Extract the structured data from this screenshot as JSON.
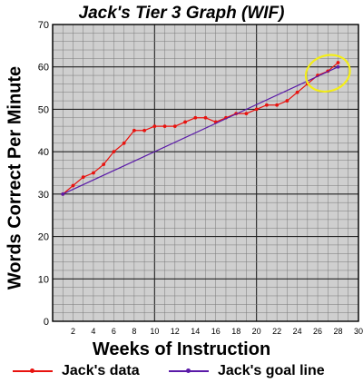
{
  "chart_data": {
    "type": "line",
    "title": "Jack's Tier 3 Graph (WIF)",
    "xlabel": "Weeks of Instruction",
    "ylabel": "Words Correct Per Minute",
    "xlim": [
      0,
      30
    ],
    "ylim": [
      0,
      70
    ],
    "x_ticks": [
      2,
      4,
      6,
      8,
      10,
      12,
      14,
      16,
      18,
      20,
      22,
      24,
      26,
      28,
      30
    ],
    "y_ticks": [
      0,
      10,
      20,
      30,
      40,
      50,
      60,
      70
    ],
    "grid": true,
    "legend_position": "bottom",
    "series": [
      {
        "name": "Jack's data",
        "color": "#e8120e",
        "x": [
          1,
          2,
          3,
          4,
          5,
          6,
          7,
          8,
          9,
          10,
          11,
          12,
          13,
          14,
          15,
          16,
          17,
          18,
          19,
          20,
          21,
          22,
          23,
          24,
          25,
          26,
          27,
          28
        ],
        "y": [
          30,
          32,
          34,
          35,
          37,
          40,
          42,
          45,
          45,
          46,
          46,
          46,
          47,
          48,
          48,
          47,
          48,
          49,
          49,
          50,
          51,
          51,
          52,
          54,
          56,
          58,
          59,
          61
        ]
      },
      {
        "name": "Jack's goal line",
        "color": "#5a1aa8",
        "x": [
          1,
          28
        ],
        "y": [
          30,
          60
        ]
      }
    ],
    "annotation": {
      "shape": "ellipse",
      "color": "#f4ee1a",
      "cx": 27,
      "cy": 58.5,
      "rx": 2.2,
      "ry": 4.2
    }
  }
}
